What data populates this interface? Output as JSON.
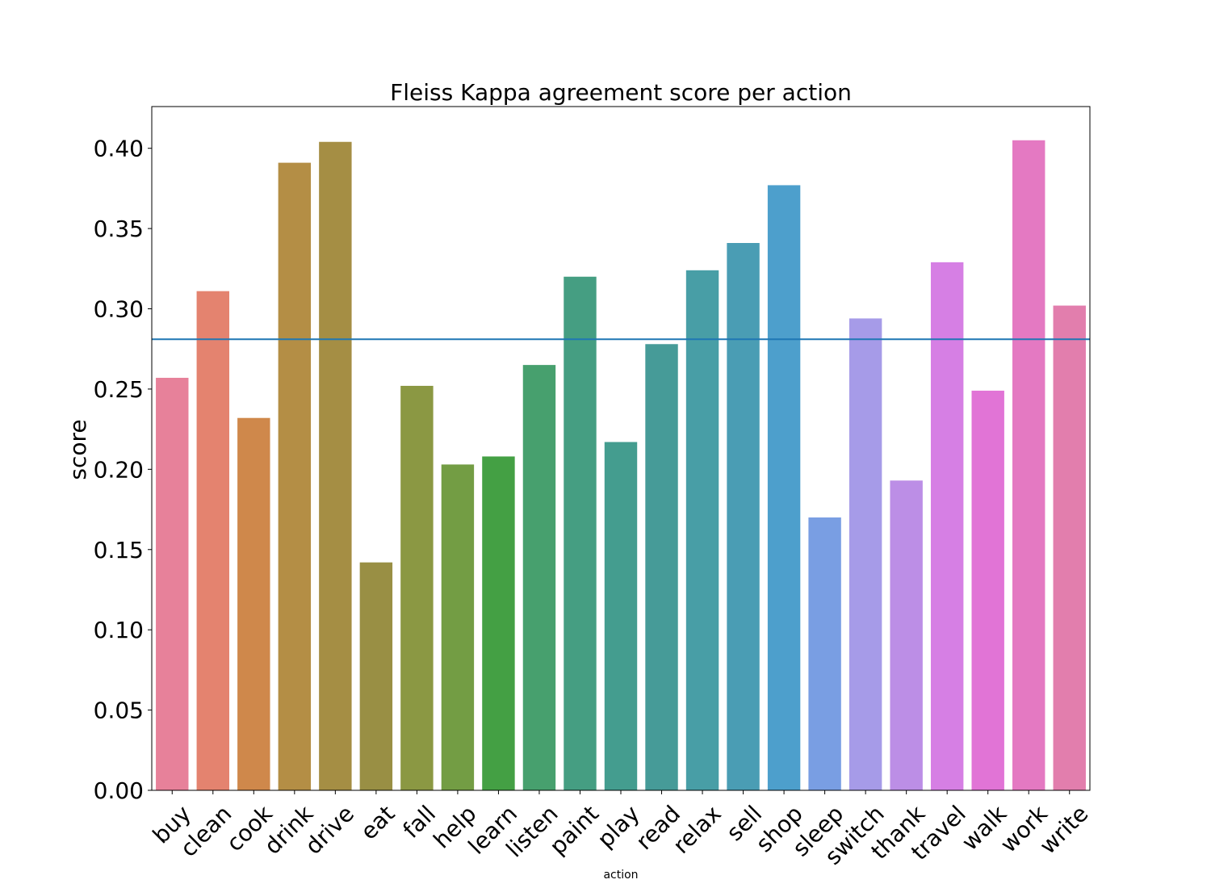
{
  "chart_data": {
    "type": "bar",
    "title": "Fleiss Kappa agreement score per action",
    "xlabel": "action",
    "ylabel": "score",
    "ylim": [
      0,
      0.426
    ],
    "yticks": [
      0.0,
      0.05,
      0.1,
      0.15,
      0.2,
      0.25,
      0.3,
      0.35,
      0.4
    ],
    "ytick_labels": [
      "0.00",
      "0.05",
      "0.10",
      "0.15",
      "0.20",
      "0.25",
      "0.30",
      "0.35",
      "0.40"
    ],
    "grid": false,
    "reference_line": {
      "value": 0.281,
      "color": "#1f77b4"
    },
    "categories": [
      "buy",
      "clean",
      "cook",
      "drink",
      "drive",
      "eat",
      "fall",
      "help",
      "learn",
      "listen",
      "paint",
      "play",
      "read",
      "relax",
      "sell",
      "shop",
      "sleep",
      "switch",
      "thank",
      "travel",
      "walk",
      "work",
      "write"
    ],
    "values": [
      0.257,
      0.311,
      0.232,
      0.391,
      0.404,
      0.142,
      0.252,
      0.203,
      0.208,
      0.265,
      0.32,
      0.217,
      0.278,
      0.324,
      0.341,
      0.377,
      0.17,
      0.294,
      0.193,
      0.329,
      0.249,
      0.405,
      0.302
    ],
    "colors": [
      "#e7819a",
      "#e4836f",
      "#cf884b",
      "#b48e45",
      "#a58e44",
      "#998f44",
      "#8b9843",
      "#739d44",
      "#44a044",
      "#47a06e",
      "#459e82",
      "#449d8f",
      "#469b98",
      "#489ea6",
      "#4a9db4",
      "#4d9fcc",
      "#799ee3",
      "#a69be8",
      "#bc8ee6",
      "#d67fe4",
      "#e174d6",
      "#e479c2",
      "#e27ead"
    ]
  }
}
